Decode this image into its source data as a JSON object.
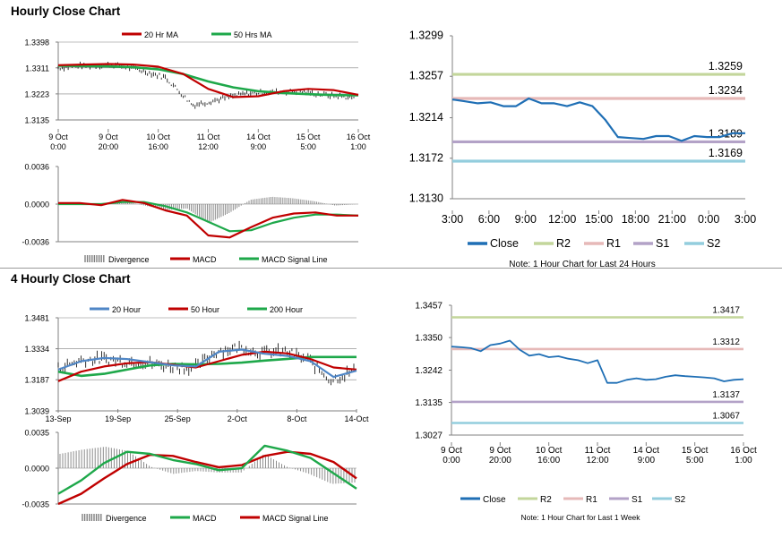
{
  "sections": {
    "hourly_title": "Hourly Close Chart",
    "four_hourly_title": "4 Hourly Close Chart"
  },
  "colors": {
    "ma20_red": "#c00000",
    "ma50_green": "#1ea84a",
    "close_blue": "#1f6fb5",
    "close_blue_light": "#4f86c6",
    "r2": "#c3d69b",
    "r1": "#e6b9b8",
    "s1": "#b3a2c7",
    "s2": "#93cddd",
    "divergence": "#7f7f7f",
    "candle": "#000000"
  },
  "chart_data": [
    {
      "id": "hourly-price",
      "type": "line",
      "title": "Hourly Close Chart",
      "legend": [
        "20 Hr MA",
        "50 Hrs MA"
      ],
      "yticks": [
        "1.3398",
        "1.3311",
        "1.3223",
        "1.3135"
      ],
      "ylim": [
        1.3135,
        1.3398
      ],
      "xticks": [
        [
          "9 Oct",
          "0:00"
        ],
        [
          "9 Oct",
          "20:00"
        ],
        [
          "10 Oct",
          "16:00"
        ],
        [
          "11 Oct",
          "12:00"
        ],
        [
          "14 Oct",
          "9:00"
        ],
        [
          "15 Oct",
          "5:00"
        ],
        [
          "16 Oct",
          "1:00"
        ]
      ],
      "series": [
        {
          "name": "20 Hr MA",
          "values": [
            1.332,
            1.3322,
            1.3324,
            1.3322,
            1.3315,
            1.329,
            1.324,
            1.3212,
            1.3215,
            1.3232,
            1.324,
            1.3236,
            1.322
          ]
        },
        {
          "name": "50 Hrs MA",
          "values": [
            1.3318,
            1.3317,
            1.3316,
            1.3313,
            1.3306,
            1.329,
            1.3265,
            1.3245,
            1.3232,
            1.3226,
            1.3222,
            1.3219,
            1.3218
          ]
        }
      ]
    },
    {
      "id": "hourly-macd",
      "type": "line",
      "yticks": [
        "0.0036",
        "0.0000",
        "-0.0036"
      ],
      "ylim": [
        -0.0036,
        0.0036
      ],
      "legend": [
        "Divergence",
        "MACD",
        "MACD Signal Line"
      ],
      "series": [
        {
          "name": "MACD",
          "values": [
            0.0001,
            0.0001,
            -0.0001,
            0.0004,
            0.0001,
            -0.0006,
            -0.0011,
            -0.003,
            -0.0032,
            -0.0022,
            -0.0013,
            -0.0009,
            -0.0008,
            -0.0011,
            -0.0011
          ]
        },
        {
          "name": "MACD Signal Line",
          "values": [
            0.0,
            0.0,
            0.0,
            0.0002,
            0.0002,
            -0.0002,
            -0.0008,
            -0.0017,
            -0.0026,
            -0.0025,
            -0.0018,
            -0.0013,
            -0.001,
            -0.001,
            -0.0011
          ]
        }
      ]
    },
    {
      "id": "hourly-levels",
      "type": "line",
      "yticks": [
        "1.3299",
        "1.3257",
        "1.3214",
        "1.3172",
        "1.3130"
      ],
      "ylim": [
        1.313,
        1.3299
      ],
      "xticks": [
        "3:00",
        "6:00",
        "9:00",
        "12:00",
        "15:00",
        "18:00",
        "21:00",
        "0:00",
        "3:00"
      ],
      "legend": [
        "Close",
        "R2",
        "R1",
        "S1",
        "S2"
      ],
      "levels": [
        {
          "name": "R2",
          "value": 1.3259,
          "label": "1.3259"
        },
        {
          "name": "R1",
          "value": 1.3234,
          "label": "1.3234"
        },
        {
          "name": "S1",
          "value": 1.3189,
          "label": "1.3189"
        },
        {
          "name": "S2",
          "value": 1.3169,
          "label": "1.3169"
        }
      ],
      "close": [
        1.3233,
        1.3231,
        1.3229,
        1.323,
        1.3226,
        1.3226,
        1.3234,
        1.3229,
        1.3229,
        1.3226,
        1.323,
        1.3226,
        1.3212,
        1.3194,
        1.3193,
        1.3192,
        1.3195,
        1.3195,
        1.319,
        1.3195,
        1.3194,
        1.3194,
        1.3198,
        1.3198
      ],
      "note": "Note: 1 Hour Chart for Last 24 Hours"
    },
    {
      "id": "four-hourly-price",
      "type": "line",
      "title": "4 Hourly Close Chart",
      "legend": [
        "20 Hour",
        "50 Hour",
        "200 Hour"
      ],
      "yticks": [
        "1.3481",
        "1.3334",
        "1.3187",
        "1.3039"
      ],
      "ylim": [
        1.3039,
        1.3481
      ],
      "xticks": [
        "13-Sep",
        "19-Sep",
        "25-Sep",
        "2-Oct",
        "8-Oct",
        "14-Oct"
      ],
      "series": [
        {
          "name": "20 Hour",
          "values": [
            1.3235,
            1.3275,
            1.329,
            1.3285,
            1.327,
            1.3255,
            1.325,
            1.332,
            1.333,
            1.331,
            1.33,
            1.3275,
            1.32,
            1.323
          ]
        },
        {
          "name": "50 Hour",
          "values": [
            1.318,
            1.3225,
            1.325,
            1.3265,
            1.327,
            1.3258,
            1.3245,
            1.3275,
            1.3305,
            1.332,
            1.3312,
            1.3285,
            1.3245,
            1.3235
          ]
        },
        {
          "name": "200 Hour",
          "values": [
            1.3225,
            1.3205,
            1.3215,
            1.3235,
            1.3255,
            1.3262,
            1.326,
            1.3262,
            1.3268,
            1.3278,
            1.3286,
            1.3295,
            1.3295,
            1.3295
          ]
        }
      ]
    },
    {
      "id": "four-hourly-macd",
      "type": "line",
      "yticks": [
        "0.0035",
        "0.0000",
        "-0.0035"
      ],
      "ylim": [
        -0.0035,
        0.0035
      ],
      "legend": [
        "Divergence",
        "MACD",
        "MACD Signal Line"
      ],
      "series": [
        {
          "name": "MACD",
          "values": [
            -0.0025,
            -0.0012,
            0.0005,
            0.0016,
            0.0014,
            0.0008,
            0.0004,
            -0.0002,
            0.0,
            0.0022,
            0.0017,
            0.001,
            -0.0005,
            -0.002
          ]
        },
        {
          "name": "MACD Signal Line",
          "values": [
            -0.0035,
            -0.0025,
            -0.001,
            0.0004,
            0.0013,
            0.0012,
            0.0006,
            0.0001,
            0.0003,
            0.0012,
            0.0016,
            0.0014,
            0.0006,
            -0.001
          ]
        }
      ]
    },
    {
      "id": "four-hourly-levels",
      "type": "line",
      "yticks": [
        "1.3457",
        "1.3350",
        "1.3242",
        "1.3135",
        "1.3027"
      ],
      "ylim": [
        1.3027,
        1.3457
      ],
      "xticks": [
        [
          "9 Oct",
          "0:00"
        ],
        [
          "9 Oct",
          "20:00"
        ],
        [
          "10 Oct",
          "16:00"
        ],
        [
          "11 Oct",
          "12:00"
        ],
        [
          "14 Oct",
          "9:00"
        ],
        [
          "15 Oct",
          "5:00"
        ],
        [
          "16 Oct",
          "1:00"
        ]
      ],
      "legend": [
        "Close",
        "R2",
        "R1",
        "S1",
        "S2"
      ],
      "levels": [
        {
          "name": "R2",
          "value": 1.3417,
          "label": "1.3417"
        },
        {
          "name": "R1",
          "value": 1.3312,
          "label": "1.3312"
        },
        {
          "name": "S1",
          "value": 1.3137,
          "label": "1.3137"
        },
        {
          "name": "S2",
          "value": 1.3067,
          "label": "1.3067"
        }
      ],
      "close": [
        1.332,
        1.3318,
        1.3315,
        1.3305,
        1.3325,
        1.333,
        1.334,
        1.331,
        1.329,
        1.3295,
        1.3285,
        1.3288,
        1.328,
        1.3275,
        1.3265,
        1.3275,
        1.32,
        1.32,
        1.321,
        1.3215,
        1.321,
        1.3212,
        1.322,
        1.3225,
        1.3222,
        1.322,
        1.3218,
        1.3215,
        1.3205,
        1.321,
        1.3212
      ],
      "note": "Note: 1 Hour Chart for Last 1 Week"
    }
  ]
}
